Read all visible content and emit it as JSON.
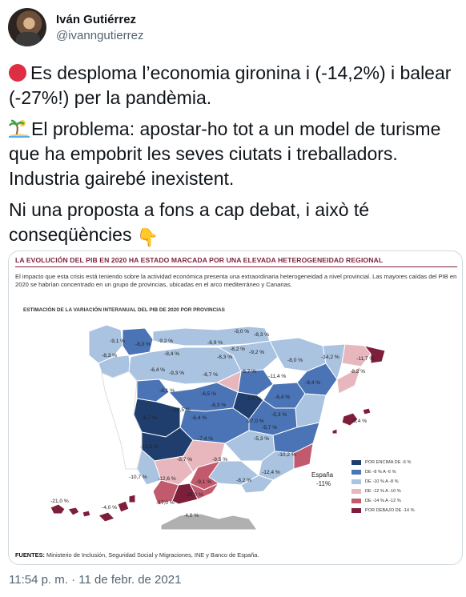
{
  "author": {
    "name": "Iván Gutiérrez",
    "handle": "@ivanngutierrez"
  },
  "tweet": {
    "para1": "Es desploma l’economia gironina i (-14,2%) i balear (-27%!) per la pandèmia.",
    "para2": "El problema: apostar-ho tot a un model de turisme que ha empobrit les seves ciutats i treballadors. Industria gairebé inexistent.",
    "para3": "Ni una proposta a fons a cap debat, i això té conseqüències",
    "emoji_icons": [
      "red-circle-icon",
      "desert-island-icon",
      "pointing-down-icon"
    ]
  },
  "card": {
    "title": "LA EVOLUCIÓN DEL PIB EN 2020 HA ESTADO MARCADA POR UNA ELEVADA HETEROGENEIDAD REGIONAL",
    "description": "El impacto que esta crisis está teniendo sobre la actividad económica presenta una extraordinaria heterogeneidad a nivel provincial. Las mayores caídas del PIB en 2020 se habrían concentrado en un grupo de provincias, ubicadas en el arco mediterráneo y Canarias.",
    "subtitle": "ESTIMACIÓN DE LA VARIACIÓN INTERANUAL DEL PIB DE 2020 POR PROVINCIAS",
    "spain_label": "España",
    "spain_value": "-11%",
    "sources_label": "FUENTES:",
    "sources_text": "Ministerio de Inclusión, Seguridad Social y Migraciones, INE y Banco de España.",
    "legend": [
      {
        "label": "POR ENCIMA DE -6 %",
        "color": "#1f3e6e"
      },
      {
        "label": "DE -8 % A -6 %",
        "color": "#4a74b5"
      },
      {
        "label": "DE -10 % A -8 %",
        "color": "#a9c3e0"
      },
      {
        "label": "DE -12 % A -10 %",
        "color": "#e8b7be"
      },
      {
        "label": "DE -14 % A -12 %",
        "color": "#c25a6d"
      },
      {
        "label": "POR DEBAJO DE -14 %",
        "color": "#7d1f3a"
      }
    ],
    "map_labels": [
      {
        "text": "-9,0 %"
      },
      {
        "text": "-8,3 %"
      },
      {
        "text": "-9,1 %"
      },
      {
        "text": "-8,0 %"
      },
      {
        "text": "-9,2 %"
      },
      {
        "text": "-8,9 %"
      },
      {
        "text": "-8,2 %"
      },
      {
        "text": "-9,2 %"
      },
      {
        "text": "-8,3 %"
      },
      {
        "text": "-8,4 %"
      },
      {
        "text": "-8,3 %"
      },
      {
        "text": "-8,0 %"
      },
      {
        "text": "-14,2 %"
      },
      {
        "text": "-11,7 %"
      },
      {
        "text": "-8,2 %"
      },
      {
        "text": "-6,4 %"
      },
      {
        "text": "-9,3 %"
      },
      {
        "text": "-6,7 %"
      },
      {
        "text": "-8,7 %"
      },
      {
        "text": "-11,4 %"
      },
      {
        "text": "-9,4 %"
      },
      {
        "text": "-8,1 %"
      },
      {
        "text": "-6,5 %"
      },
      {
        "text": "-7,0 %"
      },
      {
        "text": "-8,4 %"
      },
      {
        "text": "-10,5 %"
      },
      {
        "text": "-8,3 %"
      },
      {
        "text": "-5,3 %"
      },
      {
        "text": "-6,7 %"
      },
      {
        "text": "-6,4 %"
      },
      {
        "text": "-27,0 %"
      },
      {
        "text": "-9,4 %"
      },
      {
        "text": "-5,7 %"
      },
      {
        "text": "-7,4 %"
      },
      {
        "text": "-5,3 %"
      },
      {
        "text": "-13,5 %"
      },
      {
        "text": "-10,2 %"
      },
      {
        "text": "-8,7 %"
      },
      {
        "text": "-9,5 %"
      },
      {
        "text": "-10,7 %"
      },
      {
        "text": "-12,6 %"
      },
      {
        "text": "-9,1 %"
      },
      {
        "text": "-8,2 %"
      },
      {
        "text": "-12,4 %"
      },
      {
        "text": "-17,0 %"
      },
      {
        "text": "-19,0 %"
      },
      {
        "text": "-21,0 %"
      },
      {
        "text": "-4,0 %"
      },
      {
        "text": "-4,0 %"
      }
    ]
  },
  "timestamp": "11:54 p. m. · 11 de febr. de 2021"
}
